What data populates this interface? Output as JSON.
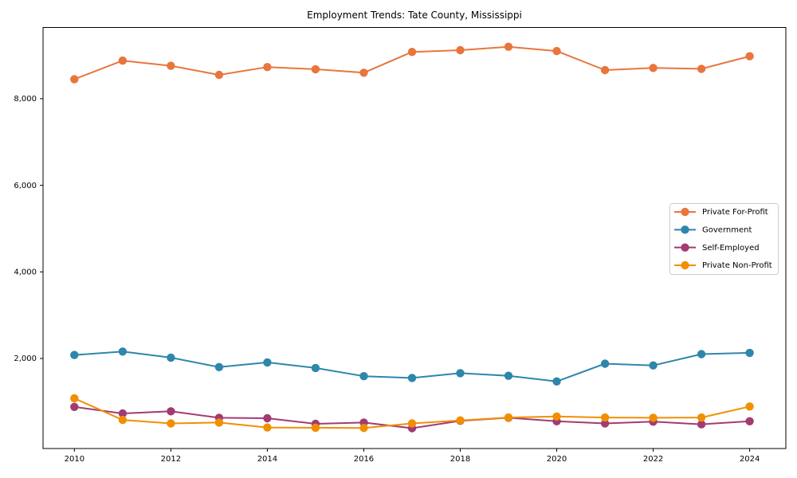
{
  "chart_data": {
    "type": "line",
    "title": "Employment Trends: Tate County, Mississippi",
    "xlabel": "",
    "ylabel": "",
    "x": [
      2010,
      2011,
      2012,
      2013,
      2014,
      2015,
      2016,
      2017,
      2018,
      2019,
      2020,
      2021,
      2022,
      2023,
      2024
    ],
    "xticks": [
      2010,
      2012,
      2014,
      2016,
      2018,
      2020,
      2022,
      2024
    ],
    "xtick_labels": [
      "2010",
      "2012",
      "2014",
      "2016",
      "2018",
      "2020",
      "2022",
      "2024"
    ],
    "yticks": [
      2000,
      4000,
      6000,
      8000
    ],
    "ytick_labels": [
      "2,000",
      "4,000",
      "6,000",
      "8,000"
    ],
    "xlim": [
      2009.35,
      2024.75
    ],
    "ylim": [
      -80,
      9645
    ],
    "grid": false,
    "legend": {
      "position": "center-right"
    },
    "series": [
      {
        "name": "Private For-Profit",
        "color": "#E8763C",
        "values": [
          8450,
          8880,
          8760,
          8550,
          8730,
          8680,
          8600,
          9080,
          9120,
          9200,
          9100,
          8660,
          8710,
          8690,
          8980
        ]
      },
      {
        "name": "Government",
        "color": "#2E86AB",
        "values": [
          2080,
          2160,
          2020,
          1800,
          1910,
          1780,
          1590,
          1550,
          1660,
          1600,
          1470,
          1880,
          1840,
          2100,
          2130
        ]
      },
      {
        "name": "Self-Employed",
        "color": "#A23B72",
        "values": [
          880,
          730,
          780,
          630,
          620,
          490,
          520,
          390,
          560,
          630,
          550,
          500,
          540,
          480,
          550
        ]
      },
      {
        "name": "Private Non-Profit",
        "color": "#F18F01",
        "values": [
          1080,
          580,
          500,
          520,
          405,
          400,
          395,
          500,
          570,
          635,
          660,
          635,
          630,
          635,
          890
        ]
      }
    ],
    "style": {
      "background": "#ffffff",
      "axis_color": "#000000",
      "legend_border_color": "#cccccc",
      "legend_background": "#ffffff",
      "marker": "circle",
      "marker_radius": 5.2,
      "line_width": 2,
      "title_font_size": 12,
      "tick_font_size": 10,
      "legend_font_size": 10
    }
  }
}
